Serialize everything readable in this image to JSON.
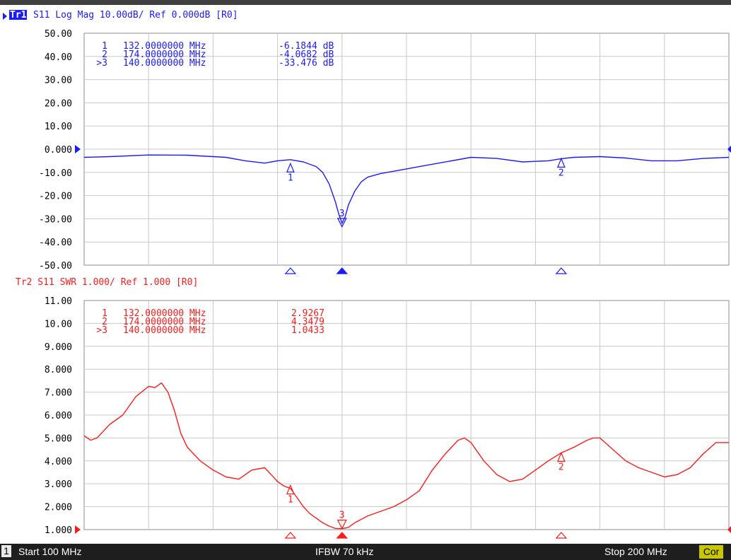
{
  "trace1": {
    "badge": "Tr1",
    "header": "S11 Log Mag 10.00dB/ Ref 0.000dB [R0]",
    "color": "#1a1aff",
    "marker_table": [
      {
        "num": "1",
        "freq": "132.0000000 MHz",
        "value": "-6.1844 dB"
      },
      {
        "num": "2",
        "freq": "174.0000000 MHz",
        "value": "-4.0682 dB"
      },
      {
        "num": ">3",
        "freq": "140.0000000 MHz",
        "value": "-33.476 dB"
      }
    ]
  },
  "trace2": {
    "header": "Tr2 S11 SWR 1.000/ Ref 1.000 [R0]",
    "color": "#ff1a1a",
    "marker_table": [
      {
        "num": "1",
        "freq": "132.0000000 MHz",
        "value": "2.9267"
      },
      {
        "num": "2",
        "freq": "174.0000000 MHz",
        "value": "4.3479"
      },
      {
        "num": ">3",
        "freq": "140.0000000 MHz",
        "value": "1.0433"
      }
    ]
  },
  "status": {
    "channel": "1",
    "start": "Start 100 MHz",
    "ifbw": "IFBW 70 kHz",
    "stop": "Stop 200 MHz",
    "cor": "Cor"
  },
  "chart_data": [
    {
      "type": "line",
      "title": "S11 Log Mag 10.00dB/ Ref 0.000dB [R0]",
      "xlabel": "",
      "ylabel": "",
      "xlim": [
        100,
        200
      ],
      "ylim": [
        -50,
        50
      ],
      "grid": true,
      "yticks": [
        "50.00",
        "40.00",
        "30.00",
        "20.00",
        "10.00",
        "0.000",
        "-10.00",
        "-20.00",
        "-30.00",
        "-40.00",
        "-50.00"
      ],
      "reference_value": 0,
      "series": [
        {
          "name": "",
          "x": [
            100,
            104,
            110,
            116,
            122,
            125,
            128,
            130,
            132,
            134,
            136,
            137,
            138,
            139,
            139.5,
            140,
            140.5,
            141,
            142,
            143,
            144,
            146,
            148,
            150,
            152,
            155,
            160,
            164,
            168,
            172,
            174,
            176,
            180,
            184,
            188,
            192,
            196,
            200
          ],
          "y": [
            -3.5,
            -3.2,
            -2.5,
            -2.6,
            -3.5,
            -5,
            -6,
            -5,
            -4.5,
            -5.5,
            -7.5,
            -10,
            -15,
            -23,
            -28,
            -32,
            -29,
            -24,
            -18,
            -14,
            -12,
            -10.5,
            -9.5,
            -8.5,
            -7.5,
            -6,
            -3.5,
            -4,
            -5.5,
            -5,
            -4.1,
            -3.5,
            -3.2,
            -3.8,
            -5,
            -5,
            -4,
            -3.5
          ]
        }
      ],
      "markers": [
        {
          "label": "1",
          "x": 132,
          "y": -6.1844
        },
        {
          "label": "2",
          "x": 174,
          "y": -4.0682
        },
        {
          "label": "3",
          "x": 140,
          "y": -33.476
        }
      ]
    },
    {
      "type": "line",
      "title": "Tr2 S11 SWR 1.000/ Ref 1.000 [R0]",
      "xlabel": "",
      "ylabel": "",
      "xlim": [
        100,
        200
      ],
      "ylim": [
        1,
        11
      ],
      "grid": true,
      "yticks": [
        "11.00",
        "10.00",
        "9.000",
        "8.000",
        "7.000",
        "6.000",
        "5.000",
        "4.000",
        "3.000",
        "2.000",
        "1.000"
      ],
      "reference_value": 1,
      "series": [
        {
          "name": "",
          "x": [
            100,
            101,
            102,
            103,
            104,
            106,
            108,
            110,
            111,
            112,
            113,
            114,
            115,
            116,
            117,
            118,
            120,
            122,
            124,
            126,
            128,
            129,
            130,
            131,
            132,
            133,
            134,
            135,
            136,
            137,
            138,
            139,
            140,
            141,
            142,
            144,
            146,
            148,
            150,
            152,
            154,
            156,
            158,
            159,
            160,
            162,
            164,
            166,
            168,
            170,
            172,
            174,
            176,
            178,
            179,
            180,
            182,
            184,
            186,
            188,
            190,
            192,
            194,
            196,
            198,
            200
          ],
          "y": [
            5.1,
            4.9,
            5.0,
            5.3,
            5.6,
            6.0,
            6.8,
            7.25,
            7.2,
            7.4,
            7.0,
            6.2,
            5.2,
            4.6,
            4.3,
            4.0,
            3.6,
            3.3,
            3.2,
            3.6,
            3.7,
            3.4,
            3.1,
            2.9,
            2.8,
            2.4,
            2.0,
            1.7,
            1.5,
            1.3,
            1.15,
            1.05,
            1.04,
            1.1,
            1.3,
            1.6,
            1.8,
            2.0,
            2.3,
            2.7,
            3.6,
            4.3,
            4.9,
            5.0,
            4.8,
            4.0,
            3.4,
            3.1,
            3.2,
            3.6,
            4.0,
            4.35,
            4.6,
            4.9,
            5.0,
            5.0,
            4.5,
            4.0,
            3.7,
            3.5,
            3.3,
            3.4,
            3.7,
            4.3,
            4.8,
            4.8
          ]
        }
      ],
      "markers": [
        {
          "label": "1",
          "x": 132,
          "y": 2.9267
        },
        {
          "label": "2",
          "x": 174,
          "y": 4.3479
        },
        {
          "label": "3",
          "x": 140,
          "y": 1.0433
        }
      ]
    }
  ]
}
